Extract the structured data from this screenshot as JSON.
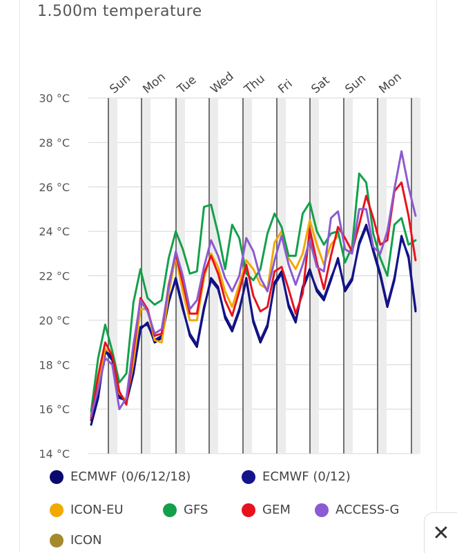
{
  "header": {
    "title": "1.500m temperature"
  },
  "chart_data": {
    "type": "line",
    "title": "1.500m temperature",
    "ylim": [
      14,
      30
    ],
    "yticks": [
      {
        "value": 30,
        "label": "30 °C"
      },
      {
        "value": 28,
        "label": "28 °C"
      },
      {
        "value": 26,
        "label": "26 °C"
      },
      {
        "value": 24,
        "label": "24 °C"
      },
      {
        "value": 22,
        "label": "22 °C"
      },
      {
        "value": 20,
        "label": "20 °C"
      },
      {
        "value": 18,
        "label": "18 °C"
      },
      {
        "value": 16,
        "label": "16 °C"
      },
      {
        "value": 14,
        "label": "14 °C"
      }
    ],
    "day_labels": [
      "Sun",
      "Mon",
      "Tue",
      "Wed",
      "Thu",
      "Fri",
      "Sat",
      "Sun",
      "Mon"
    ],
    "grid": true,
    "legend_position": "bottom",
    "series": [
      {
        "name": "ECMWF (0/6/12/18)",
        "color": "#0a0a6e",
        "values": [
          15.3,
          16.5,
          18.7,
          18.3,
          16.6,
          16.3,
          17.6,
          19.6,
          19.9,
          19.0,
          19.2,
          20.8,
          21.9,
          20.6,
          19.3,
          18.8,
          20.5,
          21.9,
          21.5,
          20.1,
          19.5,
          20.4,
          21.9,
          19.9,
          19.0,
          19.7,
          21.7,
          22.2,
          20.6,
          19.9,
          21.5,
          22.3,
          21.3,
          20.9,
          21.8,
          22.8,
          21.3,
          21.8,
          23.5,
          24.3,
          23.1,
          22.0,
          20.6,
          21.8,
          23.8,
          22.8,
          20.4
        ]
      },
      {
        "name": "ECMWF (0/12)",
        "color": "#14148c",
        "values": [
          15.5,
          16.6,
          18.6,
          18.2,
          16.5,
          16.4,
          17.7,
          19.7,
          19.8,
          19.1,
          19.3,
          20.9,
          21.8,
          20.5,
          19.4,
          18.9,
          20.6,
          21.8,
          21.4,
          20.2,
          19.6,
          20.5,
          21.8,
          20.0,
          19.1,
          19.8,
          21.6,
          22.1,
          20.7,
          20.0,
          21.4,
          22.2,
          21.4,
          21.0,
          21.9,
          22.7,
          21.4,
          21.9,
          23.4,
          24.2,
          23.2,
          22.1,
          20.7,
          21.9,
          23.7,
          22.9,
          20.5
        ]
      },
      {
        "name": "ICON-EU",
        "color": "#f2a900",
        "values": [
          15.8,
          17.3,
          18.7,
          18.5,
          16.7,
          16.4,
          18.1,
          20.5,
          20.5,
          19.1,
          19.0,
          21.2,
          22.9,
          21.3,
          20.0,
          20.0,
          21.9,
          23.0,
          22.4,
          21.3,
          20.6,
          21.6,
          22.7,
          22.3,
          21.6,
          21.4,
          23.5,
          24.0,
          22.8,
          22.3,
          23.0,
          24.5,
          23.4,
          22.5,
          23.4,
          23.8,
          null,
          null,
          null,
          null,
          null,
          null,
          null,
          null,
          null,
          null,
          null
        ]
      },
      {
        "name": "GFS",
        "color": "#13a04a",
        "values": [
          15.9,
          18.3,
          19.8,
          18.6,
          17.2,
          17.6,
          20.8,
          22.3,
          21.0,
          20.7,
          20.9,
          22.8,
          24.0,
          23.2,
          22.1,
          22.2,
          25.1,
          25.2,
          23.9,
          22.3,
          24.3,
          23.7,
          22.1,
          21.8,
          22.3,
          23.9,
          24.8,
          24.2,
          22.9,
          22.9,
          24.8,
          25.3,
          24.0,
          23.4,
          23.9,
          24.0,
          22.6,
          23.3,
          26.6,
          26.2,
          23.9,
          22.8,
          22.0,
          24.3,
          24.6,
          23.4,
          23.6
        ]
      },
      {
        "name": "GEM",
        "color": "#e8121c",
        "values": [
          15.6,
          17.5,
          19.0,
          18.4,
          16.8,
          16.2,
          18.6,
          21.0,
          20.5,
          19.3,
          19.4,
          21.6,
          23.0,
          21.7,
          20.3,
          20.3,
          22.1,
          22.9,
          22.1,
          20.9,
          20.2,
          21.3,
          22.5,
          21.1,
          20.4,
          20.6,
          22.2,
          22.4,
          21.4,
          20.3,
          21.2,
          24.1,
          22.6,
          21.4,
          22.9,
          24.2,
          23.7,
          23.1,
          24.3,
          25.6,
          24.6,
          23.4,
          23.6,
          25.8,
          26.2,
          24.7,
          22.7
        ]
      },
      {
        "name": "ACCESS-G",
        "color": "#8c5ad2",
        "values": [
          15.7,
          16.9,
          18.3,
          18.0,
          16.0,
          16.5,
          18.9,
          20.9,
          20.4,
          19.4,
          19.6,
          21.5,
          23.1,
          22.0,
          20.5,
          20.9,
          22.4,
          23.6,
          22.9,
          21.9,
          21.3,
          22.0,
          23.7,
          23.1,
          21.9,
          21.3,
          22.7,
          23.8,
          22.5,
          21.6,
          22.5,
          23.6,
          22.4,
          22.2,
          24.6,
          24.9,
          23.2,
          23.0,
          25.0,
          25.0,
          23.3,
          23.0,
          24.0,
          25.9,
          27.6,
          26.0,
          24.7
        ]
      },
      {
        "name": "ICON",
        "color": "#a58a2c",
        "values": []
      }
    ]
  },
  "close_button": {
    "label": "✕"
  }
}
